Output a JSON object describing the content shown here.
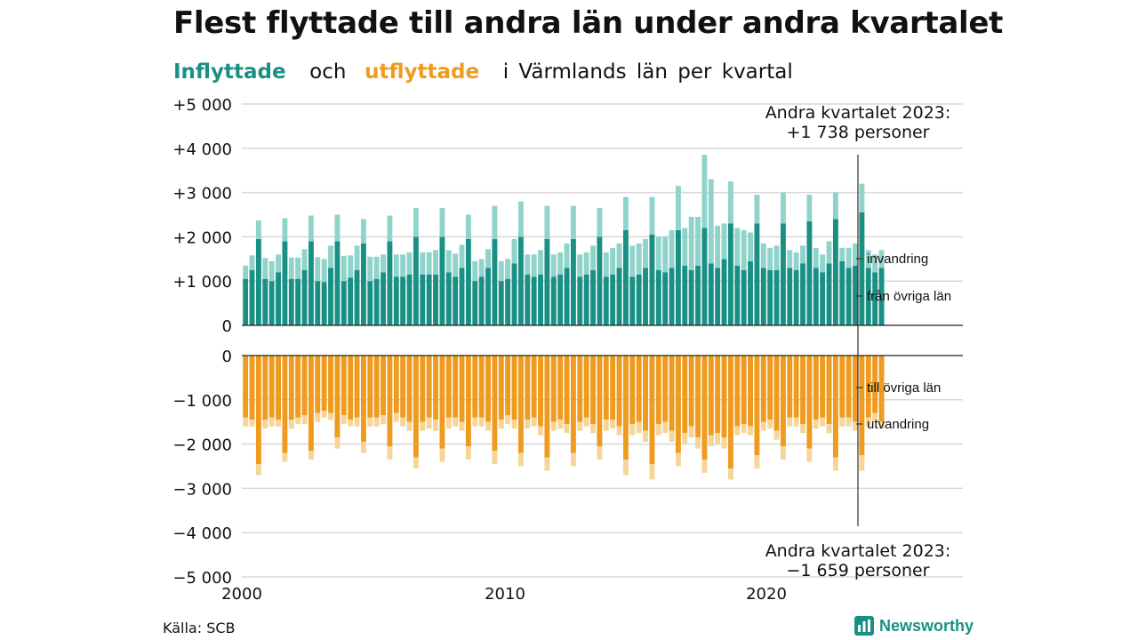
{
  "title": "Flest flyttade till andra län under andra kvartalet",
  "subtitle": {
    "inflow": "Inflyttade",
    "och": "och",
    "outflow": "utflyttade",
    "rest": "i Värmlands län per kvartal"
  },
  "source": "Källa: SCB",
  "brand": {
    "name": "Newsworthy",
    "icon": "newsworthy-logo-icon"
  },
  "colors": {
    "inflow_dark": "#1a9085",
    "inflow_light": "#8fd3cb",
    "outflow_dark": "#ee9b1f",
    "outflow_light": "#f6d599",
    "grid": "#d8d8d8",
    "axis": "#222222"
  },
  "chart_data": {
    "type": "bar",
    "stacked": true,
    "x": {
      "start": "2000Q1",
      "end": "2023Q2",
      "ticks": [
        "2000",
        "2010",
        "2020"
      ]
    },
    "yticks_pos": [
      "+5 000",
      "+4 000",
      "+3 000",
      "+2 000",
      "+1 000",
      "0"
    ],
    "yticks_neg": [
      "0",
      "−1 000",
      "−2 000",
      "−3 000",
      "−4 000",
      "−5 000"
    ],
    "ylim": [
      -5000,
      5000
    ],
    "grid": true,
    "series": [
      {
        "name": "från övriga län",
        "values": [
          1050,
          1250,
          1950,
          1050,
          1000,
          1200,
          1900,
          1050,
          1050,
          1250,
          1900,
          1000,
          980,
          1300,
          1900,
          1000,
          1080,
          1250,
          1850,
          1000,
          1050,
          1200,
          1900,
          1100,
          1100,
          1150,
          2000,
          1150,
          1150,
          1150,
          2000,
          1200,
          1100,
          1300,
          1950,
          1000,
          1100,
          1300,
          1950,
          1000,
          1050,
          1400,
          2000,
          1150,
          1100,
          1150,
          1950,
          1100,
          1150,
          1300,
          1950,
          1100,
          1150,
          1250,
          2000,
          1100,
          1150,
          1300,
          2150,
          1100,
          1150,
          1300,
          2050,
          1250,
          1200,
          1300,
          2150,
          1350,
          1250,
          1350,
          2200,
          1400,
          1300,
          1500,
          2300,
          1350,
          1250,
          1450,
          2300,
          1300,
          1250,
          1250,
          2300,
          1300,
          1250,
          1400,
          2350,
          1300,
          1200,
          1400,
          2400,
          1450,
          1300,
          1350,
          2550,
          1300,
          1200,
          1300
        ],
        "label": "från övriga län"
      },
      {
        "name": "invandring",
        "values": [
          300,
          330,
          420,
          470,
          450,
          400,
          520,
          480,
          480,
          470,
          580,
          540,
          520,
          500,
          600,
          570,
          500,
          550,
          550,
          550,
          500,
          400,
          580,
          500,
          500,
          500,
          650,
          500,
          500,
          550,
          650,
          500,
          520,
          520,
          550,
          450,
          400,
          420,
          750,
          450,
          450,
          550,
          800,
          450,
          500,
          550,
          750,
          500,
          500,
          550,
          750,
          500,
          500,
          550,
          650,
          550,
          600,
          550,
          750,
          700,
          700,
          650,
          850,
          750,
          800,
          850,
          1000,
          850,
          1200,
          1100,
          1650,
          1900,
          950,
          800,
          950,
          850,
          900,
          650,
          650,
          550,
          500,
          550,
          700,
          400,
          400,
          400,
          600,
          450,
          400,
          500,
          600,
          300,
          450,
          500,
          650,
          400,
          400,
          400
        ],
        "label": "invandring"
      },
      {
        "name": "till övriga län",
        "values": [
          -1400,
          -1450,
          -2450,
          -1450,
          -1400,
          -1450,
          -2200,
          -1450,
          -1400,
          -1350,
          -2150,
          -1300,
          -1250,
          -1300,
          -1850,
          -1350,
          -1450,
          -1400,
          -1950,
          -1400,
          -1400,
          -1350,
          -2050,
          -1300,
          -1400,
          -1500,
          -2300,
          -1500,
          -1400,
          -1450,
          -2100,
          -1400,
          -1400,
          -1500,
          -2050,
          -1400,
          -1400,
          -1500,
          -2150,
          -1450,
          -1350,
          -1450,
          -2200,
          -1450,
          -1400,
          -1600,
          -2300,
          -1500,
          -1450,
          -1550,
          -2200,
          -1500,
          -1400,
          -1550,
          -2050,
          -1450,
          -1450,
          -1600,
          -2350,
          -1550,
          -1500,
          -1700,
          -2450,
          -1550,
          -1500,
          -1700,
          -2200,
          -1750,
          -1600,
          -1850,
          -2350,
          -1800,
          -1750,
          -1850,
          -2550,
          -1600,
          -1550,
          -1600,
          -2250,
          -1500,
          -1450,
          -1700,
          -2050,
          -1400,
          -1400,
          -1550,
          -2100,
          -1450,
          -1400,
          -1550,
          -2300,
          -1400,
          -1400,
          -1500,
          -2250,
          -1400,
          -1300,
          -1500
        ],
        "label": "till övriga län"
      },
      {
        "name": "utvandring",
        "values": [
          -200,
          -150,
          -250,
          -200,
          -200,
          -150,
          -200,
          -200,
          -150,
          -200,
          -200,
          -200,
          -150,
          -150,
          -250,
          -200,
          -150,
          -200,
          -250,
          -200,
          -200,
          -200,
          -300,
          -200,
          -200,
          -200,
          -250,
          -200,
          -250,
          -250,
          -300,
          -250,
          -200,
          -200,
          -300,
          -200,
          -200,
          -200,
          -300,
          -200,
          -200,
          -200,
          -300,
          -200,
          -200,
          -200,
          -300,
          -200,
          -200,
          -200,
          -300,
          -200,
          -200,
          -200,
          -300,
          -250,
          -200,
          -200,
          -350,
          -250,
          -250,
          -250,
          -350,
          -250,
          -250,
          -250,
          -300,
          -250,
          -250,
          -250,
          -300,
          -250,
          -250,
          -250,
          -250,
          -200,
          -200,
          -200,
          -300,
          -200,
          -200,
          -200,
          -300,
          -200,
          -200,
          -200,
          -300,
          -200,
          -200,
          -200,
          -300,
          -200,
          -200,
          -200,
          -350,
          -200,
          -200,
          -150
        ],
        "label": "utvandring"
      }
    ],
    "annotations": {
      "top": {
        "line1": "Andra kvartalet 2023:",
        "line2": "+1 738 personer"
      },
      "bottom": {
        "line1": "Andra kvartalet 2023:",
        "line2": "−1 659 personer"
      }
    }
  }
}
